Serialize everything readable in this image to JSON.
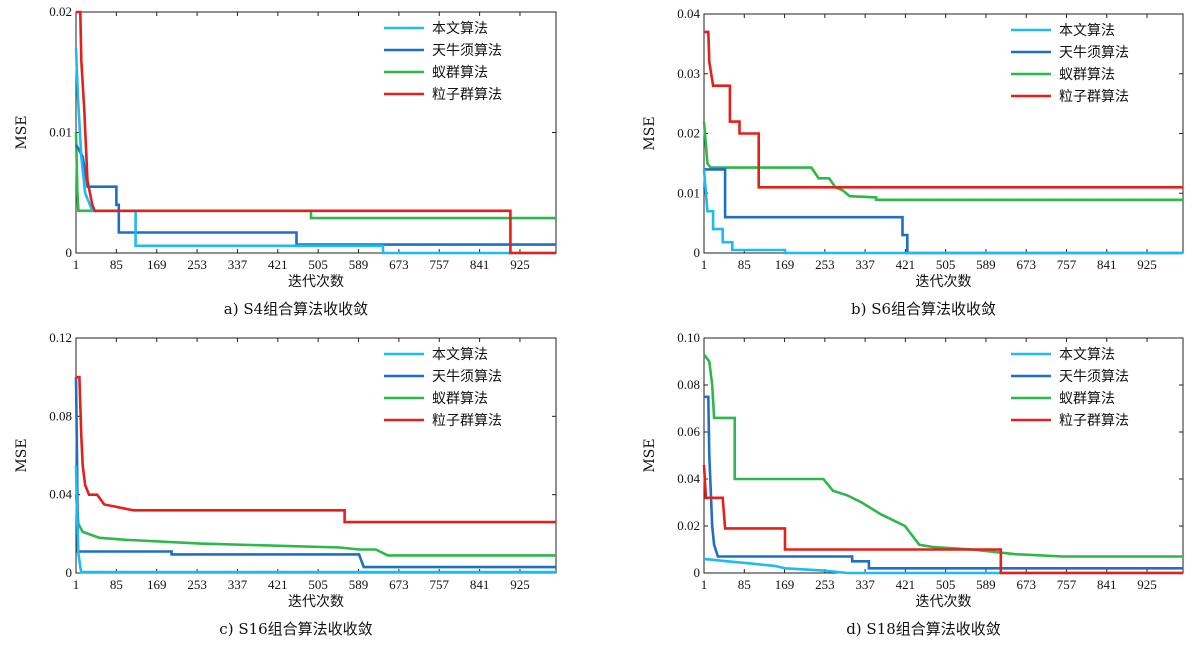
{
  "legend_labels": [
    "本文算法",
    "天牛须算法",
    "蚁群算法",
    "粒子群算法"
  ],
  "series_colors": [
    "#1ebaf0",
    "#1f6fc4",
    "#2fb84a",
    "#e3201b"
  ],
  "x_ticks": [
    1,
    85,
    169,
    253,
    337,
    421,
    505,
    589,
    673,
    757,
    841,
    925
  ],
  "x_label": "迭代次数",
  "y_label": "MSE",
  "chart_data": [
    {
      "type": "line",
      "caption": "a)    S4组合算法收收敛",
      "xlim": [
        1,
        1000
      ],
      "ylim": [
        0,
        0.02
      ],
      "yticks": [
        0,
        0.01,
        0.02
      ],
      "ytick_labels": [
        "0",
        "0.01",
        "0.02"
      ],
      "legend_position": "top-right",
      "series": [
        {
          "name": "本文算法",
          "points": [
            [
              1,
              0.017
            ],
            [
              5,
              0.013
            ],
            [
              12,
              0.008
            ],
            [
              20,
              0.005
            ],
            [
              35,
              0.0035
            ],
            [
              90,
              0.0035
            ],
            [
              125,
              0.0035
            ],
            [
              125,
              0.0006
            ],
            [
              640,
              0.0006
            ],
            [
              640,
              0.0
            ],
            [
              1000,
              0.0
            ]
          ]
        },
        {
          "name": "天牛须算法",
          "points": [
            [
              1,
              0.009
            ],
            [
              15,
              0.008
            ],
            [
              25,
              0.0055
            ],
            [
              85,
              0.0055
            ],
            [
              85,
              0.004
            ],
            [
              90,
              0.004
            ],
            [
              90,
              0.0017
            ],
            [
              460,
              0.0017
            ],
            [
              460,
              0.0007
            ],
            [
              1000,
              0.0007
            ]
          ]
        },
        {
          "name": "蚁群算法",
          "points": [
            [
              1,
              0.01
            ],
            [
              4,
              0.005
            ],
            [
              6,
              0.0035
            ],
            [
              490,
              0.0035
            ],
            [
              490,
              0.0029
            ],
            [
              1000,
              0.0029
            ]
          ]
        },
        {
          "name": "粒子群算法",
          "points": [
            [
              1,
              0.02
            ],
            [
              10,
              0.02
            ],
            [
              12,
              0.016
            ],
            [
              18,
              0.012
            ],
            [
              25,
              0.006
            ],
            [
              35,
              0.004
            ],
            [
              40,
              0.0035
            ],
            [
              905,
              0.0035
            ],
            [
              905,
              0.0
            ],
            [
              1000,
              0.0
            ]
          ]
        }
      ]
    },
    {
      "type": "line",
      "caption": "b)    S6组合算法收收敛",
      "xlim": [
        1,
        1000
      ],
      "ylim": [
        0,
        0.04
      ],
      "yticks": [
        0,
        0.01,
        0.02,
        0.03,
        0.04
      ],
      "ytick_labels": [
        "0",
        "0.01",
        "0.02",
        "0.03",
        "0.04"
      ],
      "legend_position": "top-right",
      "series": [
        {
          "name": "本文算法",
          "points": [
            [
              1,
              0.014
            ],
            [
              8,
              0.007
            ],
            [
              20,
              0.007
            ],
            [
              20,
              0.004
            ],
            [
              40,
              0.004
            ],
            [
              40,
              0.0018
            ],
            [
              60,
              0.0018
            ],
            [
              60,
              0.0005
            ],
            [
              170,
              0.0005
            ],
            [
              170,
              0.0
            ],
            [
              1000,
              0.0
            ]
          ]
        },
        {
          "name": "天牛须算法",
          "points": [
            [
              1,
              0.014
            ],
            [
              45,
              0.014
            ],
            [
              45,
              0.006
            ],
            [
              415,
              0.006
            ],
            [
              415,
              0.003
            ],
            [
              425,
              0.003
            ],
            [
              425,
              0.0
            ],
            [
              1000,
              0.0
            ]
          ]
        },
        {
          "name": "蚁群算法",
          "points": [
            [
              1,
              0.022
            ],
            [
              8,
              0.015
            ],
            [
              15,
              0.0143
            ],
            [
              225,
              0.0143
            ],
            [
              240,
              0.0125
            ],
            [
              262,
              0.0125
            ],
            [
              275,
              0.011
            ],
            [
              290,
              0.0105
            ],
            [
              305,
              0.0095
            ],
            [
              360,
              0.0093
            ],
            [
              360,
              0.0089
            ],
            [
              1000,
              0.0089
            ]
          ]
        },
        {
          "name": "粒子群算法",
          "points": [
            [
              1,
              0.037
            ],
            [
              10,
              0.037
            ],
            [
              12,
              0.032
            ],
            [
              20,
              0.028
            ],
            [
              55,
              0.028
            ],
            [
              55,
              0.022
            ],
            [
              75,
              0.022
            ],
            [
              75,
              0.02
            ],
            [
              115,
              0.02
            ],
            [
              115,
              0.011
            ],
            [
              1000,
              0.011
            ]
          ]
        }
      ]
    },
    {
      "type": "line",
      "caption": "c)    S16组合算法收收敛",
      "xlim": [
        1,
        1000
      ],
      "ylim": [
        0,
        0.12
      ],
      "yticks": [
        0,
        0.04,
        0.08,
        0.12
      ],
      "ytick_labels": [
        "0",
        "0.04",
        "0.08",
        "0.12"
      ],
      "legend_position": "top-right",
      "series": [
        {
          "name": "本文算法",
          "points": [
            [
              1,
              0.055
            ],
            [
              3,
              0.03
            ],
            [
              6,
              0.01
            ],
            [
              10,
              0.003
            ],
            [
              12,
              0.0005
            ],
            [
              1000,
              0.0005
            ]
          ]
        },
        {
          "name": "天牛须算法",
          "points": [
            [
              1,
              0.1
            ],
            [
              3,
              0.06
            ],
            [
              5,
              0.011
            ],
            [
              200,
              0.011
            ],
            [
              200,
              0.0095
            ],
            [
              590,
              0.0095
            ],
            [
              600,
              0.003
            ],
            [
              1000,
              0.003
            ]
          ]
        },
        {
          "name": "蚁群算法",
          "points": [
            [
              1,
              0.04
            ],
            [
              6,
              0.025
            ],
            [
              15,
              0.021
            ],
            [
              50,
              0.018
            ],
            [
              100,
              0.017
            ],
            [
              260,
              0.015
            ],
            [
              550,
              0.013
            ],
            [
              590,
              0.012
            ],
            [
              625,
              0.012
            ],
            [
              650,
              0.009
            ],
            [
              1000,
              0.009
            ]
          ]
        },
        {
          "name": "粒子群算法",
          "points": [
            [
              1,
              0.1
            ],
            [
              8,
              0.1
            ],
            [
              12,
              0.07
            ],
            [
              15,
              0.055
            ],
            [
              20,
              0.045
            ],
            [
              28,
              0.04
            ],
            [
              45,
              0.04
            ],
            [
              60,
              0.035
            ],
            [
              80,
              0.034
            ],
            [
              120,
              0.032
            ],
            [
              560,
              0.032
            ],
            [
              560,
              0.026
            ],
            [
              1000,
              0.026
            ]
          ]
        }
      ]
    },
    {
      "type": "line",
      "caption": "d)    S18组合算法收收敛",
      "xlim": [
        1,
        1000
      ],
      "ylim": [
        0,
        0.1
      ],
      "yticks": [
        0,
        0.02,
        0.04,
        0.06,
        0.08,
        0.1
      ],
      "ytick_labels": [
        "0",
        "0.02",
        "0.04",
        "0.06",
        "0.08",
        "0.10"
      ],
      "legend_position": "top-right",
      "series": [
        {
          "name": "本文算法",
          "points": [
            [
              1,
              0.006
            ],
            [
              50,
              0.005
            ],
            [
              100,
              0.004
            ],
            [
              150,
              0.003
            ],
            [
              170,
              0.002
            ],
            [
              250,
              0.001
            ],
            [
              300,
              0.0
            ],
            [
              1000,
              0.0
            ]
          ]
        },
        {
          "name": "天牛须算法",
          "points": [
            [
              1,
              0.075
            ],
            [
              10,
              0.075
            ],
            [
              12,
              0.05
            ],
            [
              18,
              0.02
            ],
            [
              22,
              0.012
            ],
            [
              30,
              0.007
            ],
            [
              310,
              0.007
            ],
            [
              310,
              0.005
            ],
            [
              345,
              0.005
            ],
            [
              345,
              0.002
            ],
            [
              1000,
              0.002
            ]
          ]
        },
        {
          "name": "蚁群算法",
          "points": [
            [
              1,
              0.093
            ],
            [
              12,
              0.09
            ],
            [
              18,
              0.08
            ],
            [
              22,
              0.066
            ],
            [
              65,
              0.066
            ],
            [
              65,
              0.04
            ],
            [
              250,
              0.04
            ],
            [
              270,
              0.035
            ],
            [
              300,
              0.033
            ],
            [
              330,
              0.03
            ],
            [
              370,
              0.025
            ],
            [
              400,
              0.022
            ],
            [
              420,
              0.02
            ],
            [
              450,
              0.012
            ],
            [
              480,
              0.011
            ],
            [
              560,
              0.01
            ],
            [
              650,
              0.008
            ],
            [
              750,
              0.007
            ],
            [
              1000,
              0.007
            ]
          ]
        },
        {
          "name": "粒子群算法",
          "points": [
            [
              1,
              0.046
            ],
            [
              5,
              0.032
            ],
            [
              40,
              0.032
            ],
            [
              45,
              0.019
            ],
            [
              170,
              0.019
            ],
            [
              170,
              0.01
            ],
            [
              620,
              0.01
            ],
            [
              620,
              0.0
            ],
            [
              1000,
              0.0
            ]
          ]
        }
      ]
    }
  ]
}
